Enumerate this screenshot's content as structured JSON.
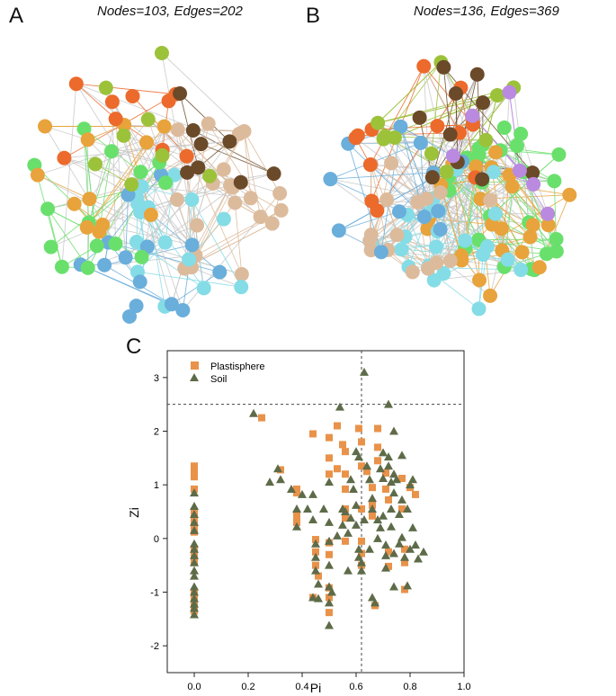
{
  "panels": {
    "a_letter": "A",
    "b_letter": "B",
    "c_letter": "C",
    "a_title": "Nodes=103, Edges=202",
    "b_title": "Nodes=136, Edges=369"
  },
  "colors": {
    "orange": "#e8a33c",
    "red": "#ec6a2b",
    "green": "#69e06c",
    "olive": "#9cc23a",
    "cyan": "#84dce6",
    "blue": "#6aaedb",
    "tan": "#dcbb9c",
    "brown": "#6b4a2a",
    "purple": "#b98ae0",
    "edge_grey": "#c8c8c8",
    "square_fill": "#e9924a",
    "triangle_fill": "#5e6b48"
  },
  "network_a": {
    "nodes": 103,
    "edges": 202,
    "module_counts": {
      "tan": 22,
      "cyan": 16,
      "blue": 14,
      "green": 14,
      "orange": 12,
      "red": 9,
      "olive": 8,
      "brown": 8
    }
  },
  "network_b": {
    "nodes": 136,
    "edges": 369,
    "module_counts": {
      "green": 24,
      "orange": 24,
      "cyan": 22,
      "tan": 16,
      "blue": 12,
      "red": 12,
      "olive": 10,
      "brown": 10,
      "purple": 6
    }
  },
  "chart_data": {
    "type": "scatter",
    "xlabel": "Pi",
    "ylabel": "Zi",
    "xlim": [
      -0.1,
      1.0
    ],
    "ylim": [
      -2.5,
      3.5
    ],
    "xticks": [
      "0.0",
      "0.2",
      "0.4",
      "0.6",
      "0.8",
      "1.0"
    ],
    "yticks": [
      "-2",
      "-1",
      "0",
      "1",
      "2",
      "3"
    ],
    "thresholds": {
      "pi": 0.62,
      "zi": 2.5
    },
    "legend_position": "top-left",
    "series": [
      {
        "name": "Plastisphere",
        "marker": "square",
        "points": [
          [
            0,
            1.35
          ],
          [
            0,
            1.25
          ],
          [
            0,
            1.15
          ],
          [
            0,
            0.92
          ],
          [
            0,
            0.5
          ],
          [
            0,
            0.42
          ],
          [
            0,
            0.3
          ],
          [
            0,
            0.22
          ],
          [
            0,
            0.12
          ],
          [
            0,
            -0.2
          ],
          [
            0,
            -0.3
          ],
          [
            0,
            -0.45
          ],
          [
            0,
            -1.0
          ],
          [
            0,
            -1.1
          ],
          [
            0,
            -1.25
          ],
          [
            0,
            -1.35
          ],
          [
            0.25,
            2.25
          ],
          [
            0.32,
            1.28
          ],
          [
            0.38,
            0.92
          ],
          [
            0.38,
            0.85
          ],
          [
            0.38,
            0.42
          ],
          [
            0.38,
            0.3
          ],
          [
            0.44,
            1.95
          ],
          [
            0.45,
            -0.02
          ],
          [
            0.45,
            -0.25
          ],
          [
            0.45,
            -0.5
          ],
          [
            0.46,
            -0.7
          ],
          [
            0.44,
            -1.1
          ],
          [
            0.5,
            1.88
          ],
          [
            0.5,
            1.5
          ],
          [
            0.5,
            1.2
          ],
          [
            0.5,
            -0.08
          ],
          [
            0.5,
            -0.3
          ],
          [
            0.5,
            -0.92
          ],
          [
            0.5,
            -1.1
          ],
          [
            0.5,
            -1.38
          ],
          [
            0.53,
            2.1
          ],
          [
            0.53,
            1.3
          ],
          [
            0.55,
            1.75
          ],
          [
            0.56,
            1.62
          ],
          [
            0.56,
            1.2
          ],
          [
            0.56,
            0.92
          ],
          [
            0.56,
            0.55
          ],
          [
            0.56,
            0.38
          ],
          [
            0.56,
            -0.05
          ],
          [
            0.61,
            2.05
          ],
          [
            0.62,
            1.8
          ],
          [
            0.62,
            1.35
          ],
          [
            0.62,
            0.55
          ],
          [
            0.62,
            -0.05
          ],
          [
            0.62,
            -0.28
          ],
          [
            0.62,
            -0.5
          ],
          [
            0.64,
            1.25
          ],
          [
            0.66,
            0.95
          ],
          [
            0.66,
            0.62
          ],
          [
            0.66,
            0.42
          ],
          [
            0.67,
            -1.25
          ],
          [
            0.68,
            2.05
          ],
          [
            0.68,
            1.7
          ],
          [
            0.68,
            1.45
          ],
          [
            0.71,
            1.22
          ],
          [
            0.71,
            0.92
          ],
          [
            0.72,
            0.72
          ],
          [
            0.72,
            -0.25
          ],
          [
            0.72,
            -0.52
          ],
          [
            0.77,
            1.12
          ],
          [
            0.77,
            0.55
          ],
          [
            0.78,
            -0.2
          ],
          [
            0.78,
            -0.45
          ],
          [
            0.78,
            -0.95
          ],
          [
            0.8,
            0.95
          ],
          [
            0.82,
            0.82
          ]
        ]
      },
      {
        "name": "Soil",
        "marker": "triangle",
        "points": [
          [
            0,
            0.85
          ],
          [
            0,
            0.6
          ],
          [
            0,
            0.45
          ],
          [
            0,
            0.3
          ],
          [
            0,
            0.15
          ],
          [
            0,
            -0.1
          ],
          [
            0,
            -0.2
          ],
          [
            0,
            -0.32
          ],
          [
            0,
            -0.45
          ],
          [
            0,
            -0.6
          ],
          [
            0,
            -0.7
          ],
          [
            0,
            -0.9
          ],
          [
            0,
            -1.0
          ],
          [
            0,
            -1.12
          ],
          [
            0,
            -1.22
          ],
          [
            0,
            -1.3
          ],
          [
            0,
            -1.42
          ],
          [
            0.22,
            2.33
          ],
          [
            0.28,
            1.05
          ],
          [
            0.31,
            1.3
          ],
          [
            0.32,
            1.1
          ],
          [
            0.36,
            0.92
          ],
          [
            0.38,
            0.55
          ],
          [
            0.38,
            0.22
          ],
          [
            0.4,
            0.82
          ],
          [
            0.42,
            0.55
          ],
          [
            0.44,
            0.82
          ],
          [
            0.44,
            0.35
          ],
          [
            0.45,
            -0.1
          ],
          [
            0.45,
            -0.35
          ],
          [
            0.45,
            -0.6
          ],
          [
            0.46,
            -0.85
          ],
          [
            0.44,
            -1.1
          ],
          [
            0.46,
            -1.12
          ],
          [
            0.48,
            0.55
          ],
          [
            0.5,
            1.05
          ],
          [
            0.5,
            0.3
          ],
          [
            0.5,
            -0.05
          ],
          [
            0.5,
            -0.5
          ],
          [
            0.5,
            -0.9
          ],
          [
            0.51,
            -1.0
          ],
          [
            0.5,
            -1.2
          ],
          [
            0.5,
            -1.62
          ],
          [
            0.53,
            0.05
          ],
          [
            0.54,
            2.45
          ],
          [
            0.55,
            0.55
          ],
          [
            0.55,
            0.25
          ],
          [
            0.56,
            0.5
          ],
          [
            0.57,
            0.1
          ],
          [
            0.57,
            -0.6
          ],
          [
            0.58,
            1.1
          ],
          [
            0.58,
            0.38
          ],
          [
            0.59,
            0.92
          ],
          [
            0.6,
            1.62
          ],
          [
            0.6,
            0.62
          ],
          [
            0.6,
            0.25
          ],
          [
            0.61,
            1.52
          ],
          [
            0.61,
            -0.2
          ],
          [
            0.61,
            -0.35
          ],
          [
            0.62,
            -0.6
          ],
          [
            0.62,
            -0.45
          ],
          [
            0.63,
            3.1
          ],
          [
            0.63,
            0.35
          ],
          [
            0.64,
            1.35
          ],
          [
            0.65,
            1.1
          ],
          [
            0.65,
            -0.2
          ],
          [
            0.66,
            0.75
          ],
          [
            0.66,
            0.55
          ],
          [
            0.66,
            -1.1
          ],
          [
            0.67,
            -1.2
          ],
          [
            0.68,
            0.35
          ],
          [
            0.68,
            0.0
          ],
          [
            0.69,
            1.3
          ],
          [
            0.69,
            0.2
          ],
          [
            0.7,
            1.6
          ],
          [
            0.7,
            1.12
          ],
          [
            0.7,
            0.42
          ],
          [
            0.71,
            -0.12
          ],
          [
            0.71,
            -0.32
          ],
          [
            0.71,
            -0.55
          ],
          [
            0.72,
            1.52
          ],
          [
            0.72,
            1.35
          ],
          [
            0.72,
            2.5
          ],
          [
            0.73,
            1.05
          ],
          [
            0.73,
            0.55
          ],
          [
            0.73,
            0.22
          ],
          [
            0.74,
            2.0
          ],
          [
            0.74,
            1.2
          ],
          [
            0.74,
            0.85
          ],
          [
            0.74,
            -0.28
          ],
          [
            0.74,
            -0.9
          ],
          [
            0.75,
            1.1
          ],
          [
            0.76,
            0.45
          ],
          [
            0.76,
            -0.1
          ],
          [
            0.77,
            1.55
          ],
          [
            0.77,
            0.72
          ],
          [
            0.77,
            0.02
          ],
          [
            0.78,
            -0.35
          ],
          [
            0.79,
            0.55
          ],
          [
            0.79,
            -0.88
          ],
          [
            0.8,
            1.0
          ],
          [
            0.8,
            -0.2
          ],
          [
            0.81,
            1.1
          ],
          [
            0.81,
            0.2
          ],
          [
            0.82,
            -0.12
          ],
          [
            0.83,
            -0.38
          ],
          [
            0.85,
            -0.25
          ]
        ]
      }
    ]
  }
}
